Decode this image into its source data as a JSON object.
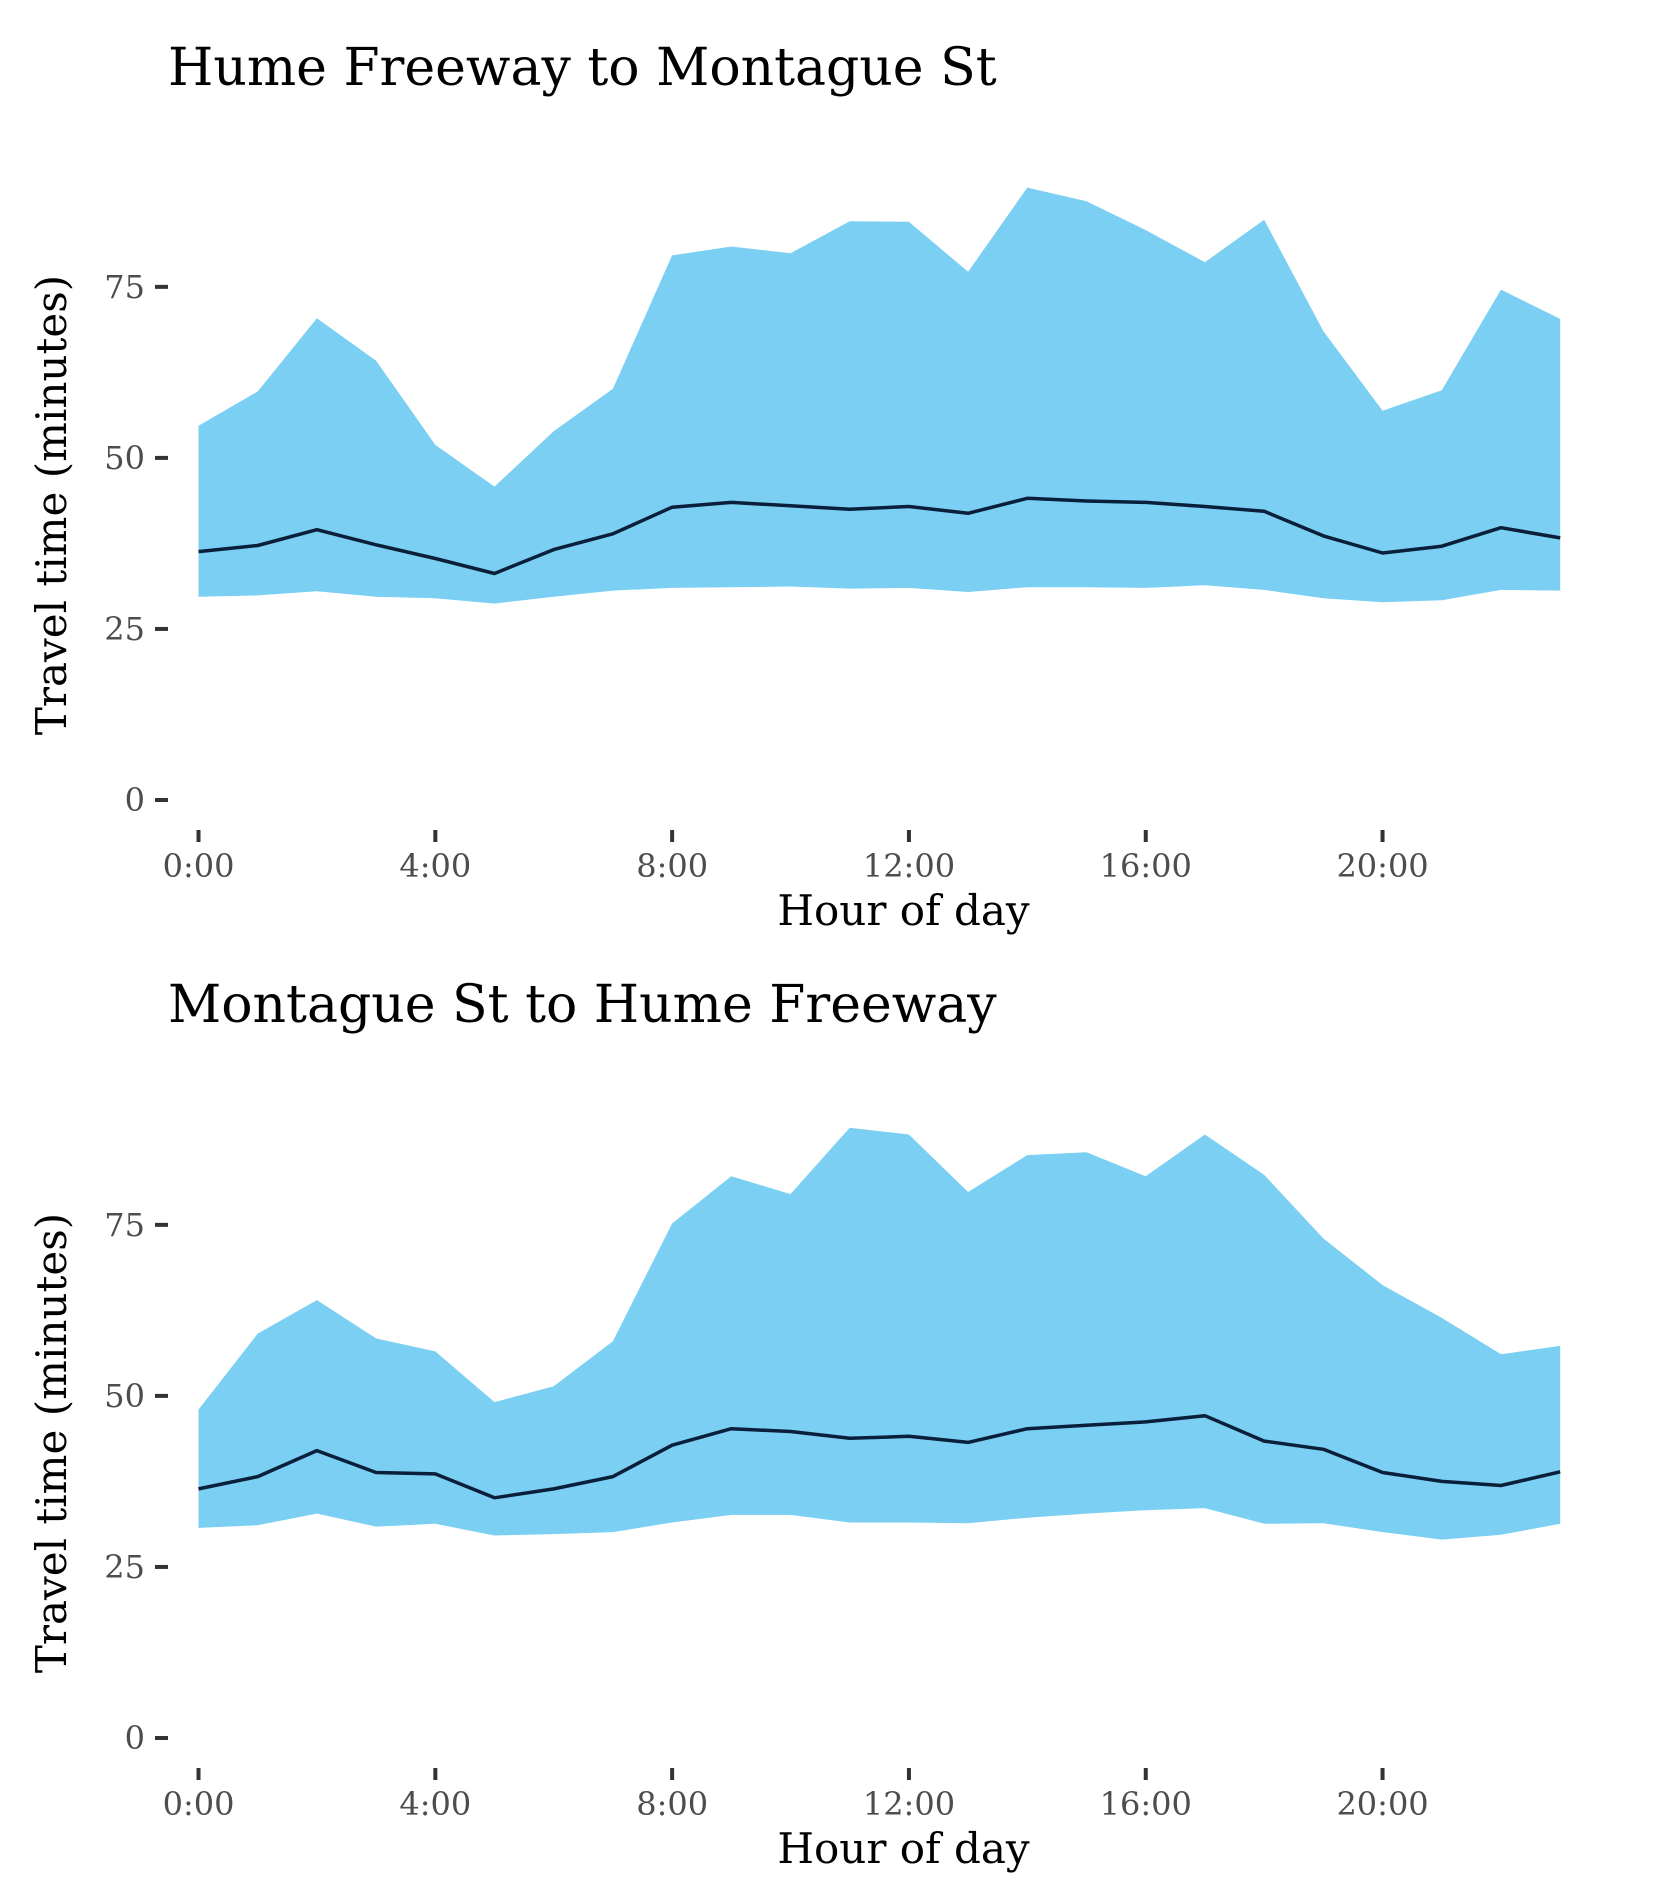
{
  "chart_data": [
    {
      "type": "area",
      "title": "Hume Freeway to Montague St",
      "xlabel": "Hour of day",
      "ylabel": "Travel time (minutes)",
      "x": [
        0,
        1,
        2,
        3,
        4,
        5,
        6,
        7,
        8,
        9,
        10,
        11,
        12,
        13,
        14,
        15,
        16,
        17,
        18,
        19,
        20,
        21,
        22,
        23
      ],
      "xticks": [
        0,
        4,
        8,
        12,
        16,
        20
      ],
      "xtick_labels": [
        "0:00",
        "4:00",
        "8:00",
        "12:00",
        "16:00",
        "20:00"
      ],
      "yticks": [
        0,
        25,
        50,
        75
      ],
      "ylim": [
        0,
        95
      ],
      "xlim": [
        -0.6,
        23.2
      ],
      "grid": false,
      "series": [
        {
          "role": "band_upper",
          "values": [
            54.7,
            59.7,
            70.4,
            64.2,
            51.9,
            45.8,
            53.9,
            60.1,
            79.6,
            80.9,
            79.9,
            84.6,
            84.5,
            77.2,
            89.5,
            87.5,
            83.3,
            78.6,
            84.8,
            68.5,
            56.9,
            59.9,
            74.6,
            70.3
          ]
        },
        {
          "role": "band_lower",
          "values": [
            29.7,
            29.9,
            30.5,
            29.7,
            29.5,
            28.7,
            29.7,
            30.6,
            31.0,
            31.1,
            31.2,
            30.9,
            31.0,
            30.4,
            31.1,
            31.1,
            31.0,
            31.4,
            30.7,
            29.5,
            28.9,
            29.2,
            30.7,
            30.6
          ]
        },
        {
          "role": "median",
          "values": [
            36.3,
            37.2,
            39.5,
            37.3,
            35.3,
            33.1,
            36.6,
            38.9,
            42.8,
            43.5,
            43.0,
            42.5,
            42.9,
            41.9,
            44.1,
            43.7,
            43.5,
            42.9,
            42.2,
            38.6,
            36.1,
            37.1,
            39.8,
            38.3
          ]
        }
      ]
    },
    {
      "type": "area",
      "title": "Montague St to Hume Freeway",
      "xlabel": "Hour of day",
      "ylabel": "Travel time (minutes)",
      "x": [
        0,
        1,
        2,
        3,
        4,
        5,
        6,
        7,
        8,
        9,
        10,
        11,
        12,
        13,
        14,
        15,
        16,
        17,
        18,
        19,
        20,
        21,
        22,
        23
      ],
      "xticks": [
        0,
        4,
        8,
        12,
        16,
        20
      ],
      "xtick_labels": [
        "0:00",
        "4:00",
        "8:00",
        "12:00",
        "16:00",
        "20:00"
      ],
      "yticks": [
        0,
        25,
        50,
        75
      ],
      "ylim": [
        0,
        95
      ],
      "xlim": [
        -0.6,
        23.2
      ],
      "grid": false,
      "series": [
        {
          "role": "band_upper",
          "values": [
            48.0,
            59.1,
            64.0,
            58.4,
            56.5,
            49.1,
            51.4,
            58.0,
            75.2,
            82.1,
            79.5,
            89.2,
            88.2,
            79.8,
            85.2,
            85.6,
            82.1,
            88.2,
            82.3,
            73.0,
            66.2,
            61.4,
            56.1,
            57.3
          ]
        },
        {
          "role": "band_lower",
          "values": [
            30.7,
            31.1,
            32.8,
            30.9,
            31.3,
            29.6,
            29.8,
            30.1,
            31.5,
            32.6,
            32.6,
            31.5,
            31.5,
            31.4,
            32.2,
            32.8,
            33.3,
            33.6,
            31.3,
            31.4,
            30.1,
            29.0,
            29.7,
            31.3
          ]
        },
        {
          "role": "median",
          "values": [
            36.4,
            38.2,
            42.0,
            38.8,
            38.6,
            35.1,
            36.4,
            38.2,
            42.8,
            45.2,
            44.8,
            43.8,
            44.1,
            43.2,
            45.2,
            45.7,
            46.2,
            47.1,
            43.4,
            42.2,
            38.8,
            37.5,
            36.9,
            38.9
          ]
        }
      ]
    }
  ],
  "colors": {
    "band": "#7acff2",
    "median_line": "#0a1f3a",
    "tick_label": "#4d4d4d"
  }
}
